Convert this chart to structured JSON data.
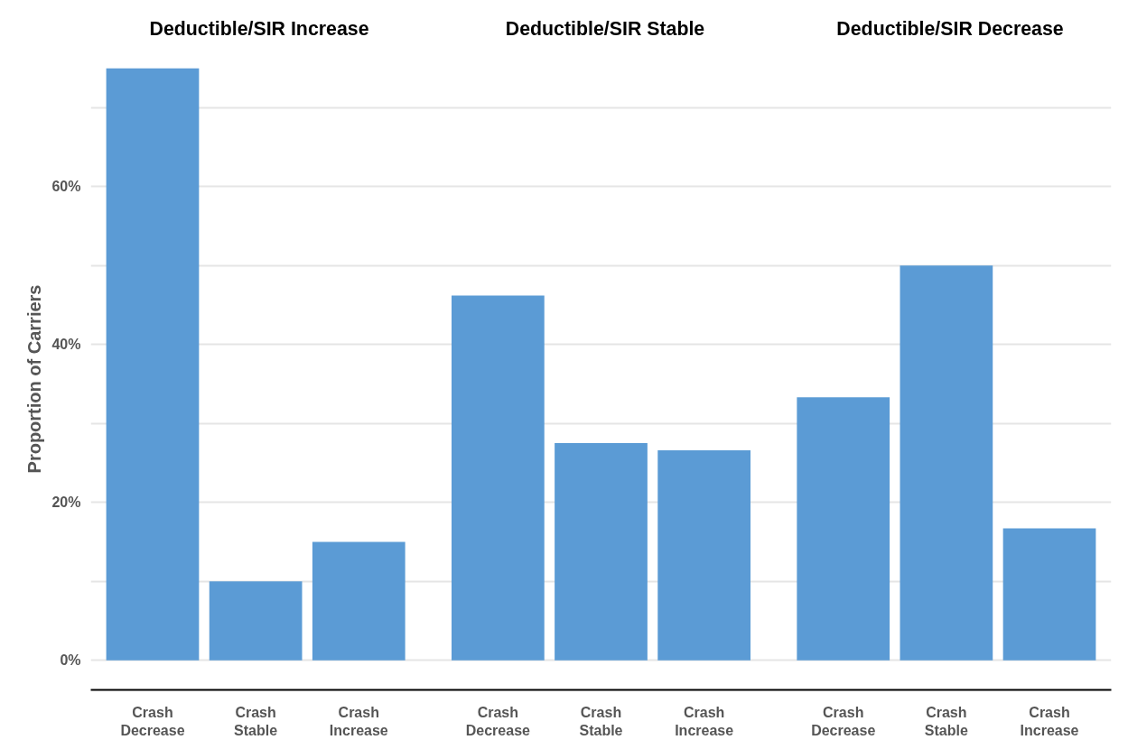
{
  "chart_data": {
    "type": "bar",
    "annotations": [
      "Deductible/SIR Increase",
      "Deductible/SIR Stable",
      "Deductible/SIR Decrease"
    ],
    "ylabel": "Proportion of Carriers",
    "categories": [
      "Crash Decrease",
      "Crash Stable",
      "Crash Increase",
      "Crash Decrease",
      "Crash Stable",
      "Crash Increase",
      "Crash Decrease",
      "Crash Stable",
      "Crash Increase"
    ],
    "values": [
      75,
      10,
      15,
      46.2,
      27.5,
      26.6,
      33.3,
      50,
      16.7
    ],
    "color": "#5b9bd5",
    "ylim": [
      -3.75,
      75
    ],
    "yticks": [
      {
        "value": 0,
        "label": "0%"
      },
      {
        "value": 10,
        "label": null
      },
      {
        "value": 20,
        "label": "20%"
      },
      {
        "value": 30,
        "label": null
      },
      {
        "value": 40,
        "label": "40%"
      },
      {
        "value": 50,
        "label": null
      },
      {
        "value": 60,
        "label": "60%"
      },
      {
        "value": 70,
        "label": null
      }
    ],
    "grid": "y"
  }
}
